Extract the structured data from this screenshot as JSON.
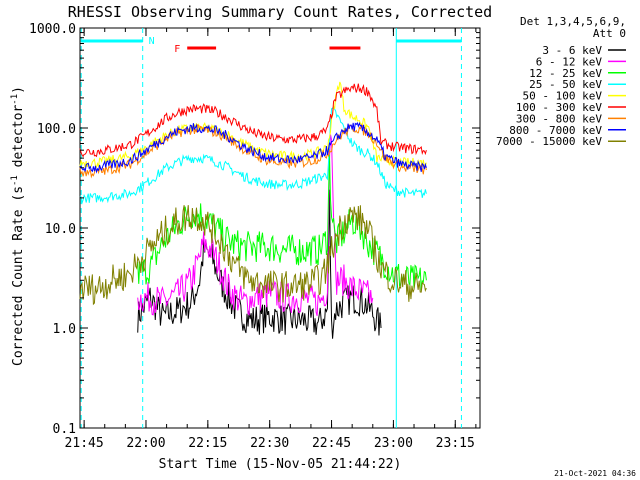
{
  "chart_data": {
    "type": "line",
    "title": "RHESSI Observing Summary Count Rates, Corrected",
    "xlabel": "Start Time (15-Nov-05 21:44:22)",
    "ylabel": "Corrected Count Rate (s⁻¹ detector⁻¹)",
    "ylabel_main": "Corrected Count Rate (s",
    "ylabel_sup1": "-1",
    "ylabel_mid": " detector",
    "ylabel_sup2": "-1",
    "ylabel_end": ")",
    "yscale": "log",
    "ylim": [
      0.1,
      1000
    ],
    "xlim": [
      "21:44",
      "23:21"
    ],
    "xlim_min": [
      1304,
      1401
    ],
    "yticks": [
      {
        "value": 1000,
        "label": "1000.0"
      },
      {
        "value": 100,
        "label": "100.0"
      },
      {
        "value": 10,
        "label": "10.0"
      },
      {
        "value": 1,
        "label": "1.0"
      },
      {
        "value": 0.1,
        "label": "0.1"
      }
    ],
    "xticks": [
      {
        "min": 1305,
        "label": "21:45"
      },
      {
        "min": 1320,
        "label": "22:00"
      },
      {
        "min": 1335,
        "label": "22:15"
      },
      {
        "min": 1350,
        "label": "22:30"
      },
      {
        "min": 1365,
        "label": "22:45"
      },
      {
        "min": 1380,
        "label": "23:00"
      },
      {
        "min": 1395,
        "label": "23:15"
      }
    ],
    "legend_position": "right",
    "legend_header": [
      "Det 1,3,4,5,6,9,",
      "Att 0"
    ],
    "series": [
      {
        "name": "3 - 6 keV",
        "color": "#000000",
        "points": [
          [
            1318,
            1.3
          ],
          [
            1321,
            2
          ],
          [
            1324,
            1.3
          ],
          [
            1326,
            1.4
          ],
          [
            1328,
            1.5
          ],
          [
            1331,
            1.8
          ],
          [
            1333,
            3
          ],
          [
            1334,
            6
          ],
          [
            1336,
            5
          ],
          [
            1338,
            3
          ],
          [
            1340,
            2
          ],
          [
            1342,
            1.5
          ],
          [
            1344,
            1.3
          ],
          [
            1346,
            1.2
          ],
          [
            1350,
            1.3
          ],
          [
            1354,
            1.2
          ],
          [
            1358,
            1.2
          ],
          [
            1362,
            1.1
          ],
          [
            1364,
            1.5
          ],
          [
            1364.5,
            20
          ],
          [
            1365,
            1.0
          ],
          [
            1366,
            1.5
          ],
          [
            1368,
            1.8
          ],
          [
            1370,
            2
          ],
          [
            1373,
            1.8
          ],
          [
            1375,
            1.4
          ],
          [
            1377,
            1.0
          ]
        ]
      },
      {
        "name": "6 - 12 keV",
        "color": "#ff00ff",
        "points": [
          [
            1318,
            2
          ],
          [
            1321,
            2
          ],
          [
            1324,
            1.8
          ],
          [
            1326,
            2
          ],
          [
            1328,
            2.2
          ],
          [
            1331,
            3
          ],
          [
            1333,
            5
          ],
          [
            1334,
            7
          ],
          [
            1336,
            6
          ],
          [
            1338,
            4
          ],
          [
            1340,
            2.5
          ],
          [
            1342,
            2
          ],
          [
            1344,
            1.8
          ],
          [
            1346,
            2
          ],
          [
            1350,
            2.2
          ],
          [
            1354,
            2
          ],
          [
            1358,
            2
          ],
          [
            1362,
            1.8
          ],
          [
            1364,
            2.5
          ],
          [
            1364.5,
            60
          ],
          [
            1365,
            100
          ],
          [
            1366,
            3
          ],
          [
            1368,
            3
          ],
          [
            1370,
            2.5
          ],
          [
            1373,
            2.2
          ],
          [
            1375,
            2
          ]
        ]
      },
      {
        "name": "12 - 25 keV",
        "color": "#00ff00",
        "points": [
          [
            1318,
            3.5
          ],
          [
            1321,
            4
          ],
          [
            1324,
            7
          ],
          [
            1326,
            9
          ],
          [
            1328,
            11
          ],
          [
            1331,
            14
          ],
          [
            1333,
            14
          ],
          [
            1335,
            12
          ],
          [
            1337,
            10
          ],
          [
            1339,
            8
          ],
          [
            1341,
            7
          ],
          [
            1344,
            6.5
          ],
          [
            1347,
            6.5
          ],
          [
            1350,
            6.5
          ],
          [
            1354,
            6
          ],
          [
            1358,
            6
          ],
          [
            1362,
            6
          ],
          [
            1364,
            8
          ],
          [
            1364.5,
            45
          ],
          [
            1365,
            15
          ],
          [
            1366,
            7
          ],
          [
            1368,
            9
          ],
          [
            1370,
            12
          ],
          [
            1372,
            10
          ],
          [
            1374,
            7
          ],
          [
            1377,
            5
          ],
          [
            1380,
            3.5
          ],
          [
            1384,
            3
          ],
          [
            1388,
            3
          ]
        ]
      },
      {
        "name": "25 - 50 keV",
        "color": "#00ffff",
        "points": [
          [
            1304,
            20
          ],
          [
            1308,
            20
          ],
          [
            1312,
            21
          ],
          [
            1316,
            22
          ],
          [
            1319,
            26
          ],
          [
            1322,
            32
          ],
          [
            1325,
            40
          ],
          [
            1328,
            46
          ],
          [
            1331,
            50
          ],
          [
            1334,
            50
          ],
          [
            1337,
            46
          ],
          [
            1340,
            40
          ],
          [
            1343,
            34
          ],
          [
            1346,
            30
          ],
          [
            1349,
            28
          ],
          [
            1352,
            27
          ],
          [
            1355,
            27
          ],
          [
            1358,
            28
          ],
          [
            1361,
            31
          ],
          [
            1364,
            34
          ],
          [
            1365,
            150
          ],
          [
            1366,
            140
          ],
          [
            1368,
            100
          ],
          [
            1370,
            70
          ],
          [
            1372,
            60
          ],
          [
            1374,
            55
          ],
          [
            1376,
            45
          ],
          [
            1378,
            28
          ],
          [
            1380,
            24
          ],
          [
            1384,
            22
          ],
          [
            1388,
            22
          ]
        ]
      },
      {
        "name": "50 - 100 keV",
        "color": "#ffff00",
        "points": [
          [
            1304,
            45
          ],
          [
            1308,
            45
          ],
          [
            1312,
            48
          ],
          [
            1316,
            52
          ],
          [
            1319,
            60
          ],
          [
            1322,
            72
          ],
          [
            1325,
            85
          ],
          [
            1328,
            95
          ],
          [
            1331,
            100
          ],
          [
            1334,
            100
          ],
          [
            1337,
            95
          ],
          [
            1340,
            85
          ],
          [
            1343,
            72
          ],
          [
            1346,
            62
          ],
          [
            1349,
            56
          ],
          [
            1352,
            53
          ],
          [
            1355,
            52
          ],
          [
            1358,
            53
          ],
          [
            1361,
            56
          ],
          [
            1364,
            64
          ],
          [
            1366,
            200
          ],
          [
            1367,
            300
          ],
          [
            1368,
            160
          ],
          [
            1370,
            130
          ],
          [
            1372,
            120
          ],
          [
            1374,
            100
          ],
          [
            1376,
            50
          ],
          [
            1378,
            48
          ],
          [
            1382,
            45
          ],
          [
            1388,
            45
          ]
        ]
      },
      {
        "name": "100 - 300 keV",
        "color": "#ff0000",
        "points": [
          [
            1304,
            58
          ],
          [
            1308,
            58
          ],
          [
            1312,
            62
          ],
          [
            1316,
            68
          ],
          [
            1319,
            80
          ],
          [
            1322,
            100
          ],
          [
            1325,
            125
          ],
          [
            1328,
            145
          ],
          [
            1331,
            155
          ],
          [
            1334,
            155
          ],
          [
            1337,
            145
          ],
          [
            1340,
            125
          ],
          [
            1343,
            105
          ],
          [
            1346,
            90
          ],
          [
            1349,
            82
          ],
          [
            1352,
            78
          ],
          [
            1355,
            76
          ],
          [
            1358,
            78
          ],
          [
            1361,
            82
          ],
          [
            1364,
            95
          ],
          [
            1366,
            200
          ],
          [
            1368,
            230
          ],
          [
            1370,
            250
          ],
          [
            1372,
            250
          ],
          [
            1374,
            230
          ],
          [
            1376,
            150
          ],
          [
            1377,
            72
          ],
          [
            1380,
            65
          ],
          [
            1384,
            62
          ],
          [
            1388,
            60
          ]
        ]
      },
      {
        "name": "300 - 800 keV",
        "color": "#ff8000",
        "points": [
          [
            1304,
            36
          ],
          [
            1308,
            36
          ],
          [
            1312,
            39
          ],
          [
            1316,
            43
          ],
          [
            1319,
            52
          ],
          [
            1322,
            64
          ],
          [
            1325,
            78
          ],
          [
            1328,
            90
          ],
          [
            1331,
            96
          ],
          [
            1334,
            96
          ],
          [
            1337,
            90
          ],
          [
            1340,
            78
          ],
          [
            1343,
            64
          ],
          [
            1346,
            54
          ],
          [
            1349,
            48
          ],
          [
            1352,
            45
          ],
          [
            1355,
            44
          ],
          [
            1358,
            45
          ],
          [
            1361,
            48
          ],
          [
            1364,
            56
          ],
          [
            1366,
            75
          ],
          [
            1368,
            90
          ],
          [
            1370,
            100
          ],
          [
            1372,
            98
          ],
          [
            1374,
            88
          ],
          [
            1376,
            72
          ],
          [
            1378,
            50
          ],
          [
            1382,
            40
          ],
          [
            1388,
            38
          ]
        ]
      },
      {
        "name": "800 - 7000 keV",
        "color": "#0000ff",
        "points": [
          [
            1304,
            40
          ],
          [
            1308,
            40
          ],
          [
            1312,
            43
          ],
          [
            1316,
            47
          ],
          [
            1319,
            56
          ],
          [
            1322,
            68
          ],
          [
            1325,
            82
          ],
          [
            1328,
            94
          ],
          [
            1331,
            100
          ],
          [
            1334,
            100
          ],
          [
            1337,
            94
          ],
          [
            1340,
            82
          ],
          [
            1343,
            68
          ],
          [
            1346,
            58
          ],
          [
            1349,
            52
          ],
          [
            1352,
            49
          ],
          [
            1355,
            48
          ],
          [
            1358,
            49
          ],
          [
            1361,
            52
          ],
          [
            1364,
            60
          ],
          [
            1366,
            78
          ],
          [
            1368,
            95
          ],
          [
            1370,
            104
          ],
          [
            1372,
            100
          ],
          [
            1374,
            90
          ],
          [
            1376,
            75
          ],
          [
            1378,
            52
          ],
          [
            1382,
            43
          ],
          [
            1388,
            40
          ]
        ]
      },
      {
        "name": "7000 - 15000 keV",
        "color": "#808000",
        "points": [
          [
            1304,
            2.5
          ],
          [
            1308,
            2.5
          ],
          [
            1312,
            3
          ],
          [
            1316,
            3.5
          ],
          [
            1319,
            5
          ],
          [
            1322,
            7
          ],
          [
            1325,
            9.5
          ],
          [
            1328,
            12
          ],
          [
            1331,
            13.5
          ],
          [
            1333,
            13
          ],
          [
            1336,
            10
          ],
          [
            1339,
            6.5
          ],
          [
            1342,
            4
          ],
          [
            1345,
            3
          ],
          [
            1348,
            2.8
          ],
          [
            1352,
            2.6
          ],
          [
            1356,
            2.6
          ],
          [
            1360,
            2.8
          ],
          [
            1363,
            3.2
          ],
          [
            1365,
            6
          ],
          [
            1367,
            10
          ],
          [
            1369,
            13
          ],
          [
            1371,
            13
          ],
          [
            1373,
            11
          ],
          [
            1375,
            7
          ],
          [
            1377,
            4
          ],
          [
            1380,
            3
          ],
          [
            1384,
            2.6
          ],
          [
            1388,
            2.5
          ]
        ]
      }
    ],
    "annotations": [
      {
        "label": "N",
        "color": "#00ffff"
      },
      {
        "label": "F",
        "color": "#ff0000"
      }
    ],
    "vertical_lines": [
      {
        "min": 1304.3,
        "style": "dashed",
        "color": "#00ffff"
      },
      {
        "min": 1319.2,
        "style": "dashed",
        "color": "#00ffff"
      },
      {
        "min": 1380.7,
        "style": "solid",
        "color": "#00ffff"
      },
      {
        "min": 1396.5,
        "style": "dashed",
        "color": "#00ffff"
      }
    ],
    "night_bars": [
      [
        1304.3,
        1319.2
      ],
      [
        1380.7,
        1396.5
      ]
    ],
    "flare_bars": [
      [
        1330,
        1337
      ],
      [
        1364.5,
        1372
      ]
    ],
    "footer_date": "21-Oct-2021 04:36"
  }
}
